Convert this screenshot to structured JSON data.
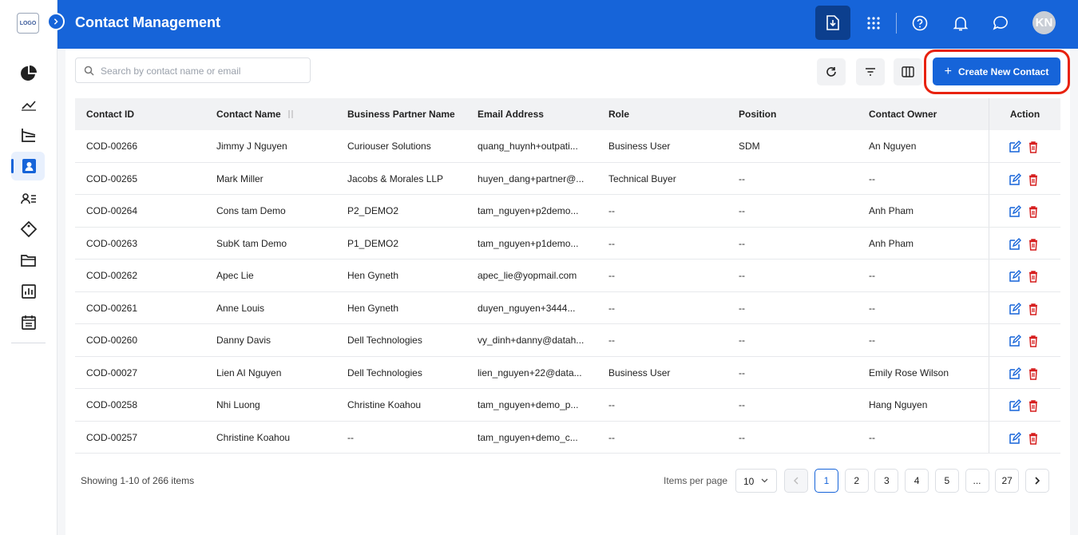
{
  "header": {
    "logo": "LOGO",
    "title": "Contact Management",
    "avatar": "KN"
  },
  "search": {
    "placeholder": "Search by contact name or email"
  },
  "create_button": "Create New Contact",
  "table": {
    "columns": [
      "Contact ID",
      "Contact Name",
      "Business Partner Name",
      "Email Address",
      "Role",
      "Position",
      "Contact Owner",
      "Action"
    ],
    "rows": [
      [
        "COD-00266",
        "Jimmy J Nguyen",
        "Curiouser Solutions",
        "quang_huynh+outpati...",
        "Business User",
        "SDM",
        "An Nguyen"
      ],
      [
        "COD-00265",
        "Mark Miller",
        "Jacobs & Morales LLP",
        "huyen_dang+partner@...",
        "Technical Buyer",
        "--",
        "--"
      ],
      [
        "COD-00264",
        "Cons tam Demo",
        "P2_DEMO2",
        "tam_nguyen+p2demo...",
        "--",
        "--",
        "Anh Pham"
      ],
      [
        "COD-00263",
        "SubK tam Demo",
        "P1_DEMO2",
        "tam_nguyen+p1demo...",
        "--",
        "--",
        "Anh Pham"
      ],
      [
        "COD-00262",
        "Apec Lie",
        "Hen Gyneth",
        "apec_lie@yopmail.com",
        "--",
        "--",
        "--"
      ],
      [
        "COD-00261",
        "Anne Louis",
        "Hen Gyneth",
        "duyen_nguyen+3444...",
        "--",
        "--",
        "--"
      ],
      [
        "COD-00260",
        "Danny Davis",
        "Dell Technologies",
        "vy_dinh+danny@datah...",
        "--",
        "--",
        "--"
      ],
      [
        "COD-00027",
        "Lien AI Nguyen",
        "Dell Technologies",
        "lien_nguyen+22@data...",
        "Business User",
        "--",
        "Emily Rose Wilson"
      ],
      [
        "COD-00258",
        "Nhi Luong",
        "Christine Koahou",
        "tam_nguyen+demo_p...",
        "--",
        "--",
        "Hang Nguyen"
      ],
      [
        "COD-00257",
        "Christine Koahou",
        "--",
        "tam_nguyen+demo_c...",
        "--",
        "--",
        "--"
      ]
    ]
  },
  "footer": {
    "summary": "Showing 1-10 of 266 items",
    "items_per_page_label": "Items per page",
    "page_size": "10",
    "pages": [
      "1",
      "2",
      "3",
      "4",
      "5",
      "...",
      "27"
    ]
  }
}
